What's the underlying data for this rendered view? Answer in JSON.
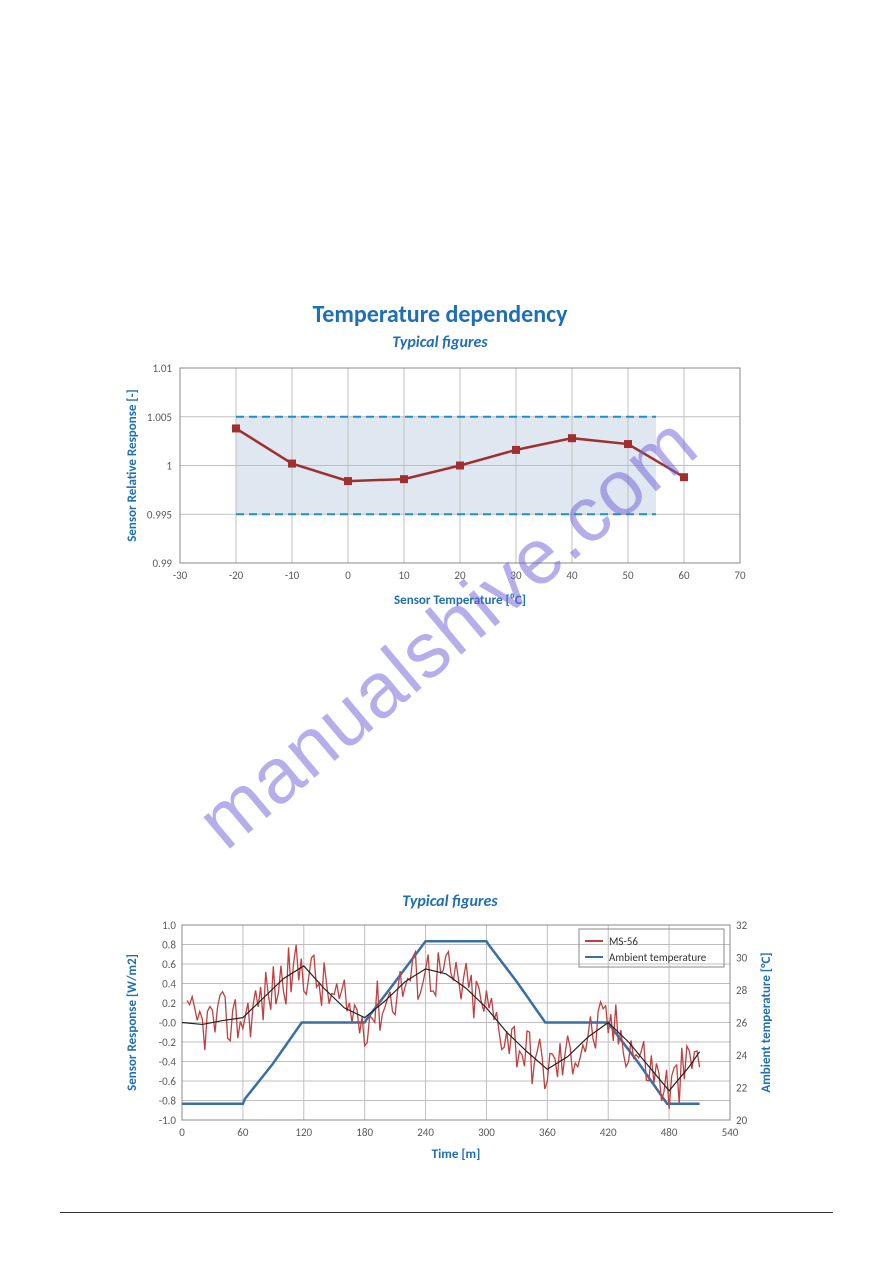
{
  "watermark": "manualshive.com",
  "chart1": {
    "type": "line",
    "title": "Temperature dependency",
    "subtitle": "Typical figures",
    "xlabel": "Sensor Temperature [⁰C]",
    "ylabel": "Sensor Relative Response [-]",
    "xlim": [
      -30,
      70
    ],
    "xtick_step": 10,
    "ylim": [
      0.99,
      1.01
    ],
    "ytick_step": 0.005,
    "band_low": 0.995,
    "band_high": 1.005,
    "band_xmin": -20,
    "band_xmax": 55,
    "series_color": "#a03030",
    "marker_color": "#a03030",
    "grid_color": "#bfbfbf",
    "label_color": "#1f6fb5",
    "title_fontsize": 24,
    "subtitle_fontsize": 16,
    "axis_label_fontsize": 13,
    "tick_fontsize": 11,
    "points": [
      [
        -20,
        1.0038
      ],
      [
        -10,
        1.0002
      ],
      [
        0,
        0.9984
      ],
      [
        10,
        0.9986
      ],
      [
        20,
        1.0
      ],
      [
        30,
        1.0016
      ],
      [
        40,
        1.0028
      ],
      [
        50,
        1.0022
      ],
      [
        60,
        0.9988
      ]
    ]
  },
  "chart2": {
    "type": "line",
    "subtitle": "Typical figures",
    "xlabel": "Time [m]",
    "ylabel_left": "Sensor Response [W/m2]",
    "ylabel_right": "Ambient temperature [°C]",
    "xlim": [
      0,
      540
    ],
    "xtick_step": 60,
    "ylim_left": [
      -1.0,
      1.0
    ],
    "ytick_left_step": 0.2,
    "ylim_right": [
      20,
      32
    ],
    "ytick_right_step": 2,
    "legend": [
      {
        "label": "MS-56",
        "color": "#c04040"
      },
      {
        "label": "Ambient temperature",
        "color": "#3a6fa6"
      }
    ],
    "grid_color": "#bfbfbf",
    "label_color": "#1f6fb5",
    "ambient_color": "#3a6fa6",
    "ms56_color": "#c04040",
    "trend_color": "#222222",
    "ambient": [
      [
        0,
        21
      ],
      [
        60,
        21
      ],
      [
        62,
        21.3
      ],
      [
        90,
        23.5
      ],
      [
        118,
        26
      ],
      [
        120,
        26
      ],
      [
        180,
        26
      ],
      [
        182,
        26.2
      ],
      [
        210,
        28.5
      ],
      [
        240,
        31
      ],
      [
        260,
        31
      ],
      [
        300,
        31
      ],
      [
        302,
        30.8
      ],
      [
        330,
        28.5
      ],
      [
        358,
        26
      ],
      [
        360,
        26
      ],
      [
        420,
        26
      ],
      [
        422,
        25.8
      ],
      [
        450,
        23.5
      ],
      [
        478,
        21
      ],
      [
        480,
        21
      ],
      [
        510,
        21
      ]
    ],
    "ms56_trend": [
      [
        0,
        0
      ],
      [
        20,
        -0.02
      ],
      [
        40,
        0.02
      ],
      [
        60,
        0.05
      ],
      [
        80,
        0.25
      ],
      [
        100,
        0.45
      ],
      [
        120,
        0.58
      ],
      [
        140,
        0.35
      ],
      [
        160,
        0.15
      ],
      [
        180,
        0.05
      ],
      [
        200,
        0.22
      ],
      [
        220,
        0.42
      ],
      [
        240,
        0.55
      ],
      [
        260,
        0.5
      ],
      [
        280,
        0.35
      ],
      [
        300,
        0.15
      ],
      [
        320,
        -0.1
      ],
      [
        340,
        -0.3
      ],
      [
        360,
        -0.48
      ],
      [
        380,
        -0.35
      ],
      [
        400,
        -0.15
      ],
      [
        420,
        0.0
      ],
      [
        440,
        -0.2
      ],
      [
        460,
        -0.45
      ],
      [
        480,
        -0.7
      ],
      [
        500,
        -0.45
      ],
      [
        510,
        -0.3
      ]
    ],
    "ms56_noise_amp": 0.3
  }
}
